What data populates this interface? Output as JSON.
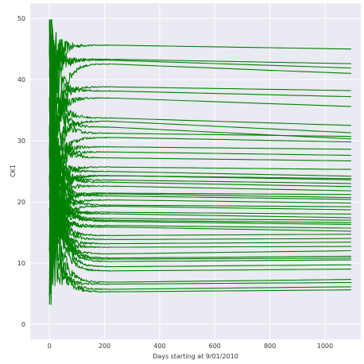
{
  "chart_data": {
    "type": "line",
    "title": "",
    "xlabel": "Days starting at 9/01/2010",
    "ylabel": "CK1",
    "xlim": [
      -70,
      1130
    ],
    "ylim": [
      -2.5,
      52.5
    ],
    "xticks": [
      0,
      200,
      400,
      600,
      800,
      1000
    ],
    "yticks": [
      0,
      10,
      20,
      30,
      40,
      50
    ],
    "grid": true,
    "background": "#eaeaf2",
    "grid_color": "#ffffff",
    "line_color": "#008000",
    "band_color": "#6a6aff",
    "x_end": 1095,
    "series_end_values": [
      45.0,
      42.6,
      41.9,
      41.0,
      38.2,
      37.2,
      35.6,
      32.5,
      31.3,
      30.7,
      30.3,
      29.8,
      28.6,
      27.6,
      26.7,
      25.3,
      24.2,
      23.8,
      23.6,
      23.0,
      22.5,
      21.8,
      21.2,
      20.7,
      20.4,
      19.8,
      19.2,
      18.7,
      18.0,
      17.4,
      17.0,
      16.6,
      16.3,
      15.7,
      15.2,
      14.7,
      14.0,
      13.4,
      12.7,
      12.0,
      11.1,
      10.8,
      10.5,
      9.7,
      9.0,
      7.3,
      6.8,
      6.1,
      5.6
    ]
  }
}
